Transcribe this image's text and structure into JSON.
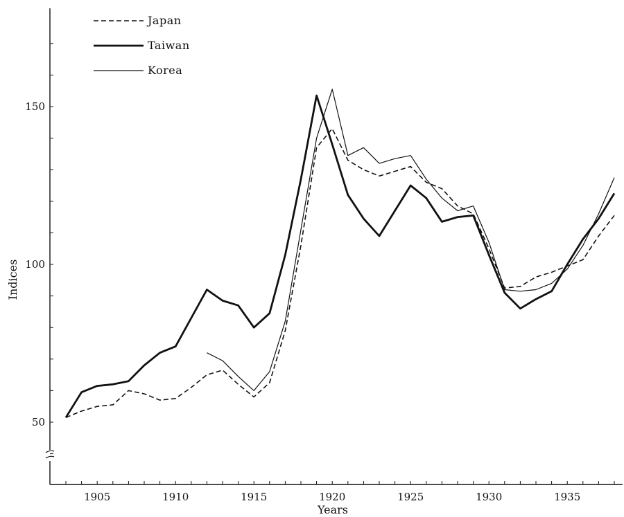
{
  "chart_data": {
    "type": "line",
    "xlabel": "Years",
    "ylabel": "Indices",
    "xlim": [
      1902,
      1938.5
    ],
    "ylim": [
      37,
      180
    ],
    "x_ticks": [
      1905,
      1910,
      1915,
      1920,
      1925,
      1930,
      1935
    ],
    "y_ticks": [
      50,
      100,
      150
    ],
    "y_axis_break": true,
    "grid": false,
    "legend_position": "top-left",
    "series": [
      {
        "name": "Japan",
        "line_style": "dashed",
        "line_weight": "medium",
        "x": [
          1903,
          1904,
          1905,
          1906,
          1907,
          1908,
          1909,
          1910,
          1911,
          1912,
          1913,
          1914,
          1915,
          1916,
          1917,
          1918,
          1919,
          1920,
          1921,
          1922,
          1923,
          1924,
          1925,
          1926,
          1927,
          1928,
          1929,
          1930,
          1931,
          1932,
          1933,
          1934,
          1935,
          1936,
          1937,
          1938
        ],
        "values": [
          51.5,
          53.5,
          55,
          55.5,
          60,
          59,
          57,
          57.5,
          61,
          65,
          66.5,
          62,
          58,
          62.5,
          79,
          106,
          137,
          143,
          133,
          130,
          128,
          129.5,
          131,
          126,
          124,
          118.5,
          116,
          105,
          92.5,
          93,
          96,
          97.5,
          99.5,
          101.5,
          109,
          115.5
        ]
      },
      {
        "name": "Taiwan",
        "line_style": "solid",
        "line_weight": "heavy",
        "x": [
          1903,
          1904,
          1905,
          1906,
          1907,
          1908,
          1909,
          1910,
          1911,
          1912,
          1913,
          1914,
          1915,
          1916,
          1917,
          1918,
          1919,
          1920,
          1921,
          1922,
          1923,
          1924,
          1925,
          1926,
          1927,
          1928,
          1929,
          1930,
          1931,
          1932,
          1933,
          1934,
          1935,
          1936,
          1937,
          1938
        ],
        "values": [
          51.5,
          59.5,
          61.5,
          62,
          63,
          68,
          72,
          74,
          83,
          92,
          88.5,
          87,
          80,
          84.5,
          103,
          127,
          153.5,
          138,
          122,
          114.5,
          109,
          117,
          125,
          121,
          113.5,
          115,
          115.5,
          103,
          91,
          86,
          89,
          91.5,
          100,
          108,
          114.5,
          122.5
        ]
      },
      {
        "name": "Korea",
        "line_style": "solid",
        "line_weight": "thin",
        "x": [
          1912,
          1913,
          1914,
          1915,
          1916,
          1917,
          1918,
          1919,
          1920,
          1921,
          1922,
          1923,
          1924,
          1925,
          1926,
          1927,
          1928,
          1929,
          1930,
          1931,
          1932,
          1933,
          1934,
          1935,
          1936,
          1937,
          1938
        ],
        "values": [
          72,
          69.5,
          64.5,
          60,
          66,
          82,
          111,
          140,
          155.5,
          134.5,
          137,
          132,
          133.5,
          134.5,
          127,
          121,
          117,
          118.5,
          107,
          92,
          91.5,
          92,
          94,
          98.5,
          106,
          116,
          127.5
        ]
      }
    ]
  }
}
